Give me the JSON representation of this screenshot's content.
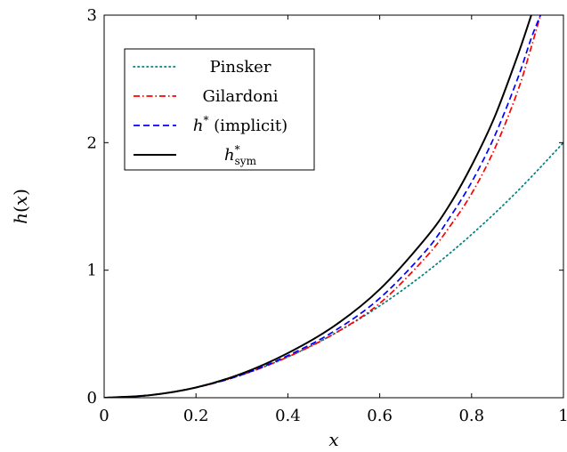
{
  "chart_data": {
    "type": "line",
    "xlabel": "x",
    "ylabel": "h(x)",
    "xlim": [
      0,
      1
    ],
    "ylim": [
      0,
      3
    ],
    "x_ticks": [
      "0",
      "0.2",
      "0.4",
      "0.6",
      "0.8",
      "1"
    ],
    "y_ticks": [
      "0",
      "1",
      "2",
      "3"
    ],
    "x_tick_values": [
      0,
      0.2,
      0.4,
      0.6,
      0.8,
      1
    ],
    "y_tick_values": [
      0,
      1,
      2,
      3
    ],
    "legend_position": "top-left",
    "grid": false,
    "series": [
      {
        "name": "Pinsker",
        "color": "#008080",
        "style": "dotted",
        "x": [
          0,
          0.1,
          0.2,
          0.3,
          0.4,
          0.5,
          0.6,
          0.7,
          0.8,
          0.9,
          1.0
        ],
        "y": [
          0,
          0.02,
          0.08,
          0.18,
          0.32,
          0.5,
          0.72,
          0.98,
          1.28,
          1.62,
          2.0
        ]
      },
      {
        "name": "Gilardoni",
        "color": "#ff0000",
        "style": "dashdot",
        "x": [
          0,
          0.1,
          0.2,
          0.3,
          0.4,
          0.5,
          0.6,
          0.7,
          0.75,
          0.8,
          0.85,
          0.9,
          0.93,
          0.95
        ],
        "y": [
          0,
          0.02,
          0.08,
          0.18,
          0.32,
          0.5,
          0.74,
          1.1,
          1.33,
          1.6,
          1.95,
          2.4,
          2.75,
          3.0
        ]
      },
      {
        "name": "h* (implicit)",
        "color": "#0000ff",
        "style": "dashed",
        "x": [
          0,
          0.1,
          0.2,
          0.3,
          0.4,
          0.5,
          0.6,
          0.7,
          0.75,
          0.8,
          0.85,
          0.9,
          0.93,
          0.95
        ],
        "y": [
          0,
          0.02,
          0.08,
          0.18,
          0.33,
          0.52,
          0.78,
          1.15,
          1.4,
          1.69,
          2.05,
          2.5,
          2.82,
          3.0
        ]
      },
      {
        "name": "h*_sym",
        "color": "#000000",
        "style": "solid",
        "x": [
          0,
          0.1,
          0.2,
          0.3,
          0.4,
          0.5,
          0.6,
          0.7,
          0.75,
          0.8,
          0.85,
          0.9,
          0.93
        ],
        "y": [
          0,
          0.02,
          0.08,
          0.19,
          0.35,
          0.56,
          0.85,
          1.25,
          1.5,
          1.82,
          2.2,
          2.68,
          3.0
        ]
      }
    ]
  }
}
